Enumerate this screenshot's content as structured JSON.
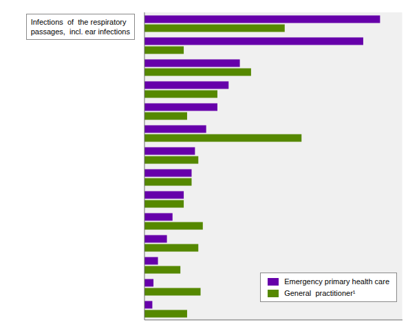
{
  "chart_data": {
    "type": "bar",
    "orientation": "horizontal",
    "categories": [
      null,
      null,
      null,
      null,
      null,
      null,
      null,
      null,
      null,
      null,
      null,
      null,
      null,
      null
    ],
    "series": [
      {
        "name": "Emergency primary health care",
        "color": "#6600aa",
        "values": [
          21.0,
          19.5,
          8.5,
          7.5,
          6.5,
          5.5,
          4.5,
          4.2,
          3.5,
          2.5,
          2.0,
          1.2,
          0.8,
          0.7
        ]
      },
      {
        "name": "General  practitioner¹",
        "color": "#558800",
        "values": [
          12.5,
          3.5,
          9.5,
          6.5,
          3.8,
          14.0,
          4.8,
          4.2,
          3.5,
          5.2,
          4.8,
          3.2,
          5.0,
          3.8
        ]
      }
    ],
    "xlim": [
      0,
      23
    ],
    "xticks": [
      0,
      5,
      10,
      15,
      20
    ],
    "grid": true,
    "legend": "lower right",
    "tick_labels": false,
    "annotation": "Infections  of  the respiratory\npassages,  incl. ear infections"
  }
}
